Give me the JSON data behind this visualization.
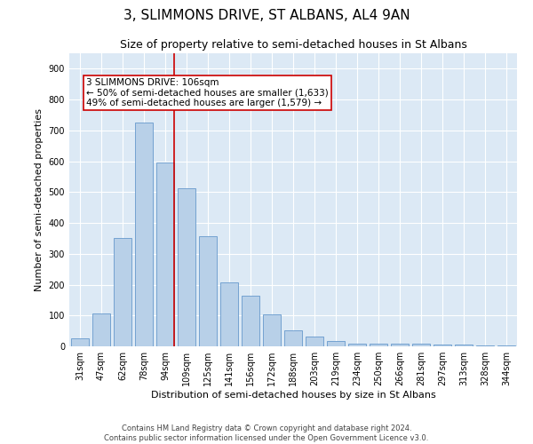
{
  "title": "3, SLIMMONS DRIVE, ST ALBANS, AL4 9AN",
  "subtitle": "Size of property relative to semi-detached houses in St Albans",
  "xlabel": "Distribution of semi-detached houses by size in St Albans",
  "ylabel": "Number of semi-detached properties",
  "footer_line1": "Contains HM Land Registry data © Crown copyright and database right 2024.",
  "footer_line2": "Contains public sector information licensed under the Open Government Licence v3.0.",
  "categories": [
    "31sqm",
    "47sqm",
    "62sqm",
    "78sqm",
    "94sqm",
    "109sqm",
    "125sqm",
    "141sqm",
    "156sqm",
    "172sqm",
    "188sqm",
    "203sqm",
    "219sqm",
    "234sqm",
    "250sqm",
    "266sqm",
    "281sqm",
    "297sqm",
    "313sqm",
    "328sqm",
    "344sqm"
  ],
  "values": [
    25,
    107,
    350,
    725,
    595,
    512,
    358,
    207,
    165,
    103,
    53,
    33,
    18,
    10,
    8,
    10,
    8,
    5,
    5,
    3,
    3
  ],
  "bar_color": "#b8d0e8",
  "bar_edge_color": "#6699cc",
  "vline_color": "#cc0000",
  "annotation_text_line1": "3 SLIMMONS DRIVE: 106sqm",
  "annotation_text_line2": "← 50% of semi-detached houses are smaller (1,633)",
  "annotation_text_line3": "49% of semi-detached houses are larger (1,579) →",
  "annotation_box_facecolor": "#ffffff",
  "annotation_box_edgecolor": "#cc0000",
  "ylim": [
    0,
    950
  ],
  "yticks": [
    0,
    100,
    200,
    300,
    400,
    500,
    600,
    700,
    800,
    900
  ],
  "fig_background": "#ffffff",
  "plot_bg_color": "#dce9f5",
  "grid_color": "#ffffff",
  "title_fontsize": 11,
  "subtitle_fontsize": 9,
  "xlabel_fontsize": 8,
  "ylabel_fontsize": 8,
  "tick_fontsize": 7,
  "footer_fontsize": 6,
  "annotation_fontsize": 7.5,
  "vline_x_index": 4.43
}
